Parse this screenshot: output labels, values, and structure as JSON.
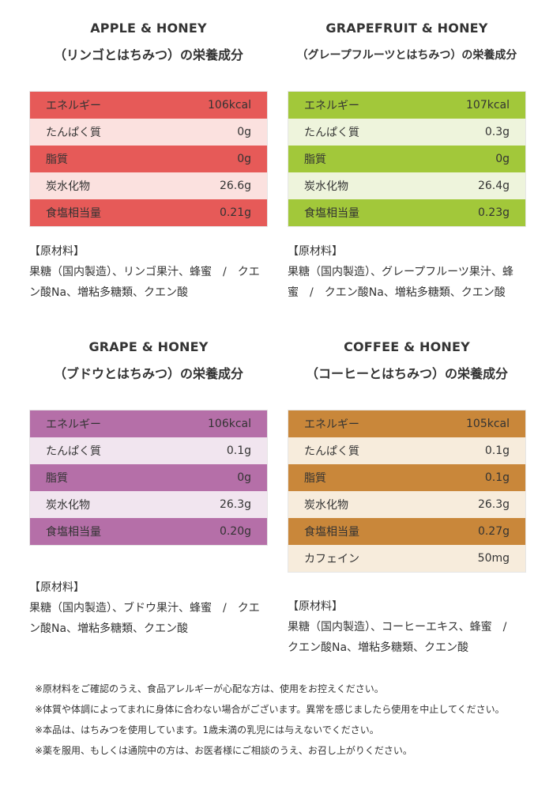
{
  "products": [
    {
      "id": "apple",
      "title": "APPLE & HONEY",
      "subtitle": "（リンゴとはちみつ）の栄養成分",
      "colors": {
        "dark": "#e65a58",
        "light": "#fbe1df"
      },
      "rows": [
        {
          "label": "エネルギー",
          "value": "106kcal"
        },
        {
          "label": "たんぱく質",
          "value": "0g"
        },
        {
          "label": "脂質",
          "value": "0g"
        },
        {
          "label": "炭水化物",
          "value": "26.6g"
        },
        {
          "label": "食塩相当量",
          "value": "0.21g"
        }
      ],
      "ingredients_head": "【原材料】",
      "ingredients_body": "果糖（国内製造）、リンゴ果汁、蜂蜜　/　クエン酸Na、増粘多糖類、クエン酸"
    },
    {
      "id": "grapefruit",
      "title": "GRAPEFRUIT & HONEY",
      "subtitle": "（グレープフルーツとはちみつ）の栄養成分",
      "colors": {
        "dark": "#a2c83a",
        "light": "#eef4dc"
      },
      "rows": [
        {
          "label": "エネルギー",
          "value": "107kcal"
        },
        {
          "label": "たんぱく質",
          "value": "0.3g"
        },
        {
          "label": "脂質",
          "value": "0g"
        },
        {
          "label": "炭水化物",
          "value": "26.4g"
        },
        {
          "label": "食塩相当量",
          "value": "0.23g"
        }
      ],
      "ingredients_head": "【原材料】",
      "ingredients_body": "果糖（国内製造）、グレープフルーツ果汁、蜂蜜　/　クエン酸Na、増粘多糖類、クエン酸"
    },
    {
      "id": "grape",
      "title": "GRAPE & HONEY",
      "subtitle": "（ブドウとはちみつ）の栄養成分",
      "colors": {
        "dark": "#b56fa8",
        "light": "#f1e5ef"
      },
      "rows": [
        {
          "label": "エネルギー",
          "value": "106kcal"
        },
        {
          "label": "たんぱく質",
          "value": "0.1g"
        },
        {
          "label": "脂質",
          "value": "0g"
        },
        {
          "label": "炭水化物",
          "value": "26.3g"
        },
        {
          "label": "食塩相当量",
          "value": "0.20g"
        }
      ],
      "ingredients_head": "【原材料】",
      "ingredients_body": "果糖（国内製造）、ブドウ果汁、蜂蜜　/　クエン酸Na、増粘多糖類、クエン酸"
    },
    {
      "id": "coffee",
      "title": "COFFEE & HONEY",
      "subtitle": "（コーヒーとはちみつ）の栄養成分",
      "colors": {
        "dark": "#c9873a",
        "light": "#f7ecdc"
      },
      "rows": [
        {
          "label": "エネルギー",
          "value": "105kcal"
        },
        {
          "label": "たんぱく質",
          "value": "0.1g"
        },
        {
          "label": "脂質",
          "value": "0.1g"
        },
        {
          "label": "炭水化物",
          "value": "26.3g"
        },
        {
          "label": "食塩相当量",
          "value": "0.27g"
        },
        {
          "label": "カフェイン",
          "value": "50mg"
        }
      ],
      "ingredients_head": "【原材料】",
      "ingredients_body": "果糖（国内製造）、コーヒーエキス、蜂蜜　/　クエン酸Na、増粘多糖類、クエン酸"
    }
  ],
  "notes": [
    "※原材料をご確認のうえ、食品アレルギーが心配な方は、使用をお控えください。",
    "※体質や体調によってまれに身体に合わない場合がございます。異常を感じましたら使用を中止してください。",
    "※本品は、はちみつを使用しています。1歳未満の乳児には与えないでください。",
    "※薬を服用、もしくは通院中の方は、お医者様にご相談のうえ、お召し上がりください。"
  ]
}
